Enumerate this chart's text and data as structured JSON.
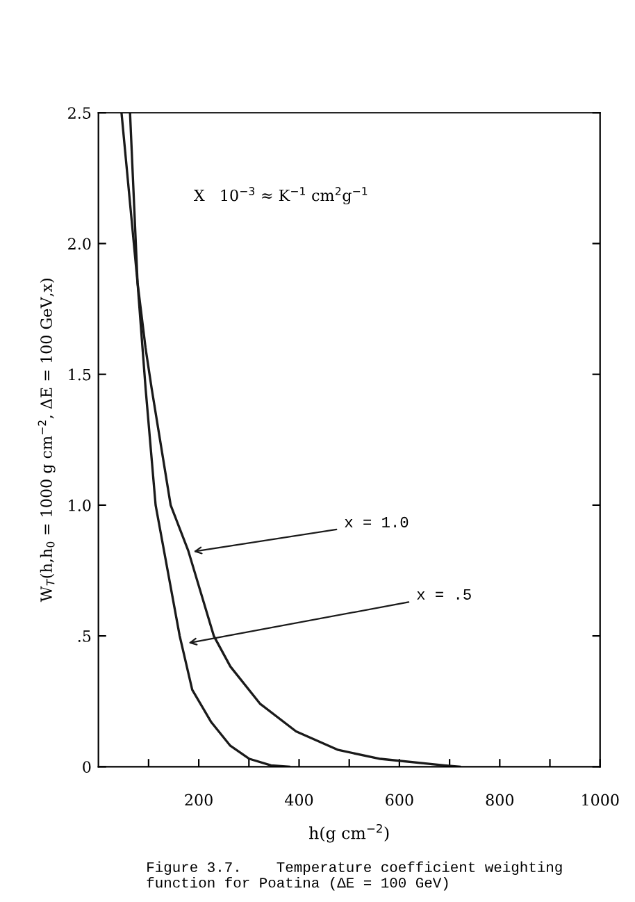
{
  "chart_data": {
    "type": "line",
    "xlabel": "h(g cm$^{−2}$)",
    "ylabel": "W$_{T}$(h,h$_{0}$ = 1000 g cm$^{−2}$, ΔE = 100 GeV,x)",
    "series": [
      {
        "color": "#1a1a1a",
        "x": [
          46,
          78,
          94,
          106,
          144,
          179,
          230,
          263,
          322,
          394,
          478,
          562,
          689,
          720
        ],
        "values": [
          2.5,
          1.85,
          1.6,
          1.447,
          1.0,
          0.826,
          0.5,
          0.383,
          0.241,
          0.135,
          0.064,
          0.03,
          0.005,
          0
        ]
      },
      {
        "color": "#1a1a1a",
        "x": [
          63,
          78,
          94,
          114,
          162,
          187,
          225,
          263,
          301,
          344,
          380
        ],
        "values": [
          2.5,
          1.85,
          1.447,
          1.0,
          0.5,
          0.294,
          0.17,
          0.08,
          0.03,
          0.005,
          0
        ]
      }
    ],
    "xlim": [
      0,
      1000
    ],
    "ylim": [
      0,
      2.5
    ],
    "xticks": [
      {
        "value": 100,
        "label": null
      },
      200,
      {
        "value": 300,
        "label": null
      },
      400,
      {
        "value": 500,
        "label": null
      },
      600,
      {
        "value": 700,
        "label": null
      },
      800,
      {
        "value": 900,
        "label": null
      },
      1000
    ],
    "yticks": [
      0,
      {
        "value": 0.5,
        "label": ".5"
      },
      {
        "value": 1.0,
        "label": "1.0"
      },
      {
        "value": 1.5,
        "label": "1.5"
      },
      {
        "value": 2.0,
        "label": "2.0"
      },
      {
        "value": 2.5,
        "label": "2.5"
      }
    ],
    "grid": false,
    "marker": "none",
    "line_style": "solid",
    "annotations": [
      {
        "text": "X   10$^{−3}$ ≈ K$^{−1}$ cm$^{2}$g$^{−1}$"
      },
      {
        "text": "x = 1.0",
        "x": 182,
        "y": 0.82
      },
      {
        "text": "x = .5",
        "x": 172,
        "y": 0.47
      },
      {
        "text": "Figure 3.7.    Temperature coefficient weighting function for Poatina (ΔE = 100 GeV)"
      }
    ]
  }
}
